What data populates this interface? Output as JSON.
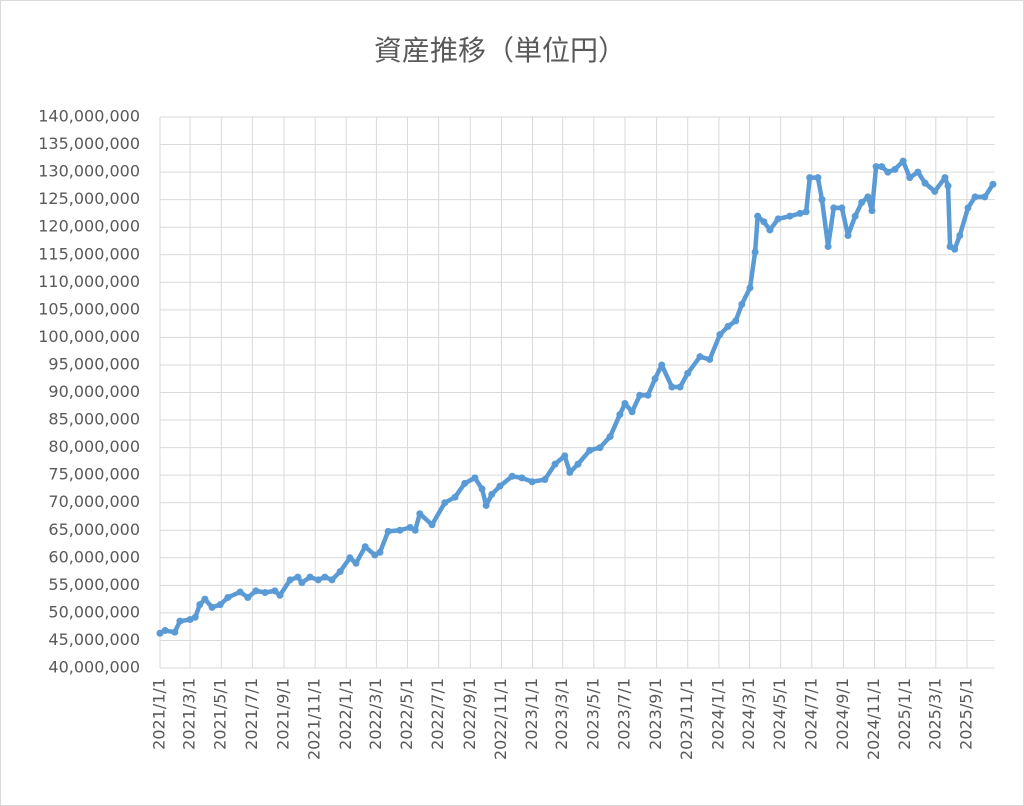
{
  "chart_data": {
    "type": "line",
    "title": "資産推移（単位円）",
    "x": [
      "2021/1/1",
      "2021/1/11",
      "2021/1/30",
      "2021/2/9",
      "2021/3/1",
      "2021/3/11",
      "2021/3/20",
      "2021/3/30",
      "2021/4/13",
      "2021/4/29",
      "2021/5/14",
      "2021/6/7",
      "2021/6/22",
      "2021/7/8",
      "2021/7/26",
      "2021/8/14",
      "2021/8/24",
      "2021/9/13",
      "2021/9/28",
      "2021/10/6",
      "2021/10/22",
      "2021/11/7",
      "2021/11/20",
      "2021/12/4",
      "2021/12/20",
      "2022/1/8",
      "2022/1/20",
      "2022/2/7",
      "2022/2/26",
      "2022/3/8",
      "2022/3/24",
      "2022/4/16",
      "2022/5/6",
      "2022/5/16",
      "2022/5/25",
      "2022/6/18",
      "2022/7/13",
      "2022/8/2",
      "2022/8/21",
      "2022/9/10",
      "2022/9/24",
      "2022/10/2",
      "2022/10/13",
      "2022/10/29",
      "2022/11/22",
      "2022/12/11",
      "2022/12/31",
      "2023/1/25",
      "2023/2/14",
      "2023/3/5",
      "2023/3/15",
      "2023/3/31",
      "2023/4/23",
      "2023/5/13",
      "2023/6/2",
      "2023/6/21",
      "2023/7/1",
      "2023/7/15",
      "2023/7/30",
      "2023/8/15",
      "2023/8/29",
      "2023/9/11",
      "2023/10/1",
      "2023/10/17",
      "2023/11/1",
      "2023/11/25",
      "2023/12/14",
      "2024/1/3",
      "2024/1/19",
      "2024/2/3",
      "2024/2/15",
      "2024/3/2",
      "2024/3/12",
      "2024/3/17",
      "2024/3/29",
      "2024/4/10",
      "2024/4/26",
      "2024/5/19",
      "2024/6/8",
      "2024/6/20",
      "2024/6/27",
      "2024/7/13",
      "2024/7/21",
      "2024/8/2",
      "2024/8/13",
      "2024/8/29",
      "2024/9/10",
      "2024/9/24",
      "2024/10/7",
      "2024/10/19",
      "2024/10/27",
      "2024/11/4",
      "2024/11/15",
      "2024/11/27",
      "2024/12/11",
      "2024/12/27",
      "2025/1/9",
      "2025/1/25",
      "2025/2/8",
      "2025/2/27",
      "2025/3/19",
      "2025/3/25",
      "2025/3/29",
      "2025/4/7",
      "2025/4/17",
      "2025/5/3",
      "2025/5/17",
      "2025/6/5",
      "2025/6/21"
    ],
    "series": [
      {
        "name": "資産",
        "color": "#5b9bd5",
        "values": [
          46300000,
          46800000,
          46500000,
          48500000,
          48800000,
          49200000,
          51500000,
          52500000,
          51000000,
          51500000,
          52800000,
          53800000,
          52800000,
          54000000,
          53700000,
          54000000,
          53200000,
          56000000,
          56500000,
          55500000,
          56500000,
          56000000,
          56500000,
          56000000,
          57500000,
          60000000,
          59000000,
          62000000,
          60500000,
          61000000,
          64800000,
          65000000,
          65500000,
          65000000,
          68000000,
          66000000,
          70000000,
          71000000,
          73500000,
          74500000,
          72500000,
          69500000,
          71500000,
          73000000,
          74800000,
          74500000,
          73800000,
          74200000,
          77000000,
          78500000,
          75500000,
          77000000,
          79500000,
          80000000,
          82000000,
          86000000,
          88000000,
          86500000,
          89500000,
          89500000,
          92500000,
          95000000,
          91000000,
          91000000,
          93500000,
          96500000,
          96000000,
          100500000,
          102000000,
          103000000,
          106000000,
          109000000,
          115500000,
          122000000,
          121000000,
          119500000,
          121500000,
          122000000,
          122500000,
          122800000,
          129000000,
          129000000,
          125000000,
          116500000,
          123500000,
          123500000,
          118500000,
          122000000,
          124500000,
          125500000,
          123000000,
          131000000,
          131000000,
          130000000,
          130500000,
          132000000,
          129000000,
          130000000,
          128000000,
          126500000,
          129000000,
          127500000,
          116500000,
          116000000,
          118500000,
          123500000,
          125500000,
          125500000,
          127800000
        ]
      }
    ],
    "xlim": [
      "2021/1/1",
      "2025/6/25"
    ],
    "xticks": [
      "2021/1/1",
      "2021/3/1",
      "2021/5/1",
      "2021/7/1",
      "2021/9/1",
      "2021/11/1",
      "2022/1/1",
      "2022/3/1",
      "2022/5/1",
      "2022/7/1",
      "2022/9/1",
      "2022/11/1",
      "2023/1/1",
      "2023/3/1",
      "2023/5/1",
      "2023/7/1",
      "2023/9/1",
      "2023/11/1",
      "2024/1/1",
      "2024/3/1",
      "2024/5/1",
      "2024/7/1",
      "2024/9/1",
      "2024/11/1",
      "2025/1/1",
      "2025/3/1",
      "2025/5/1"
    ],
    "ylim": [
      40000000,
      140000000
    ],
    "yticks": [
      {
        "value": 40000000,
        "label": "40,000,000"
      },
      {
        "value": 45000000,
        "label": "45,000,000"
      },
      {
        "value": 50000000,
        "label": "50,000,000"
      },
      {
        "value": 55000000,
        "label": "55,000,000"
      },
      {
        "value": 60000000,
        "label": "60,000,000"
      },
      {
        "value": 65000000,
        "label": "65,000,000"
      },
      {
        "value": 70000000,
        "label": "70,000,000"
      },
      {
        "value": 75000000,
        "label": "75,000,000"
      },
      {
        "value": 80000000,
        "label": "80,000,000"
      },
      {
        "value": 85000000,
        "label": "85,000,000"
      },
      {
        "value": 90000000,
        "label": "90,000,000"
      },
      {
        "value": 95000000,
        "label": "95,000,000"
      },
      {
        "value": 100000000,
        "label": "100,000,000"
      },
      {
        "value": 105000000,
        "label": "105,000,000"
      },
      {
        "value": 110000000,
        "label": "110,000,000"
      },
      {
        "value": 115000000,
        "label": "115,000,000"
      },
      {
        "value": 120000000,
        "label": "120,000,000"
      },
      {
        "value": 125000000,
        "label": "125,000,000"
      },
      {
        "value": 130000000,
        "label": "130,000,000"
      },
      {
        "value": 135000000,
        "label": "135,000,000"
      },
      {
        "value": 140000000,
        "label": "140,000,000"
      }
    ],
    "grid": true
  }
}
